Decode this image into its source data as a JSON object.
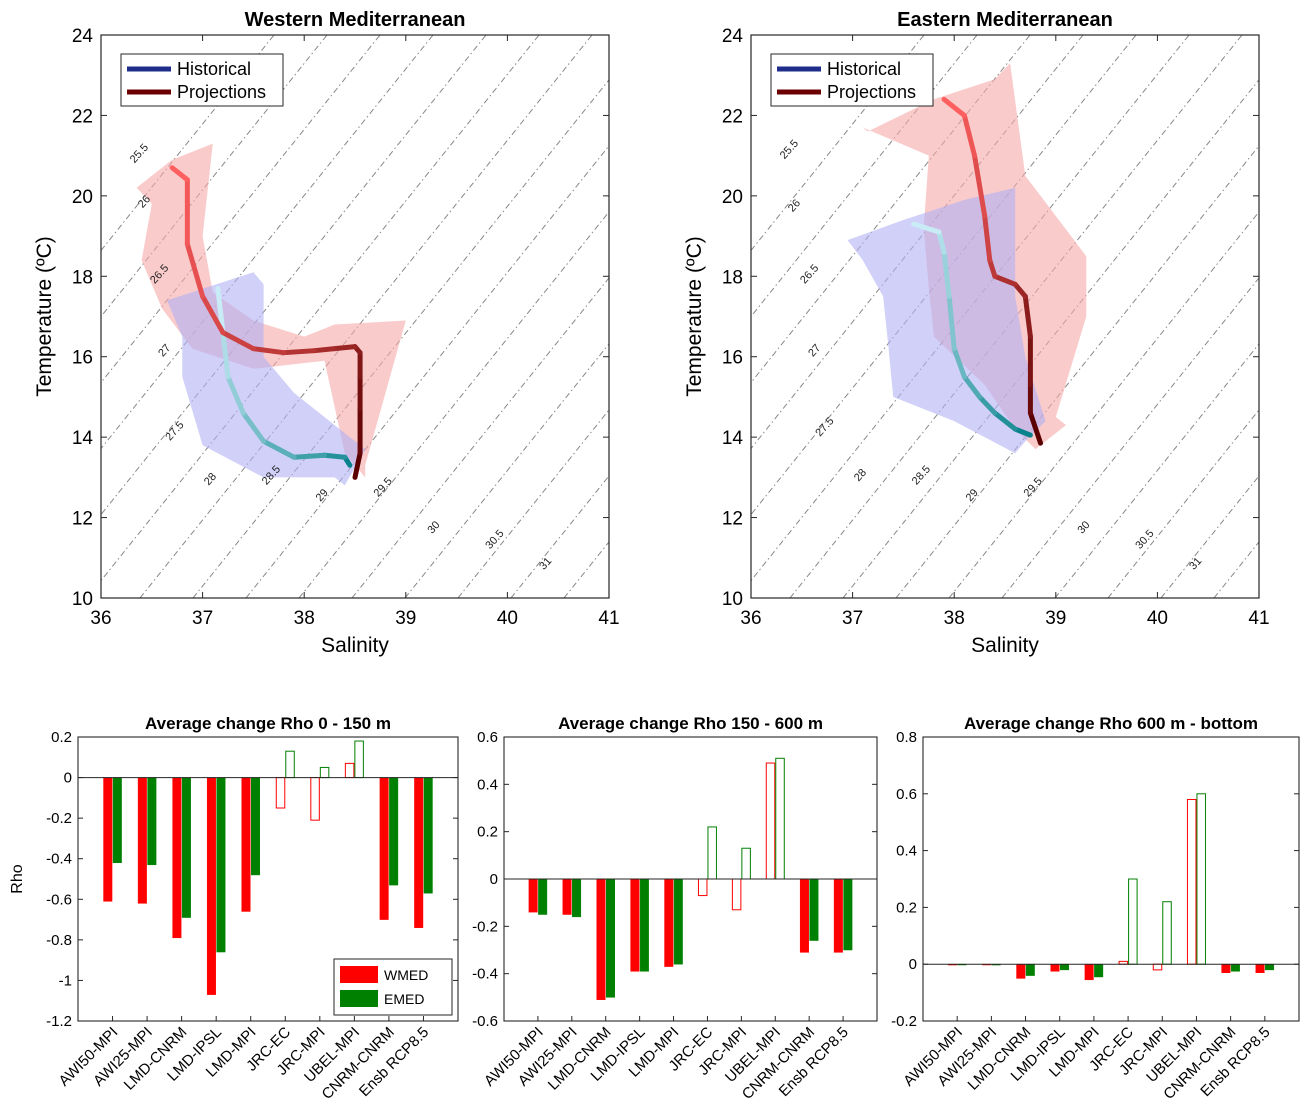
{
  "chart_data": [
    {
      "type": "ts-diagram",
      "title": "Western Mediterranean",
      "xlabel": "Salinity",
      "ylabel": "Temperature (ºC)",
      "xlim": [
        36,
        41
      ],
      "ylim": [
        10,
        24
      ],
      "xticks": [
        "36",
        "37",
        "38",
        "39",
        "40",
        "41"
      ],
      "yticks": [
        "10",
        "12",
        "14",
        "16",
        "18",
        "20",
        "22",
        "24"
      ],
      "isopycnals": [
        {
          "label": "25.5",
          "at": [
            36.4,
            21.0
          ]
        },
        {
          "label": "26",
          "at": [
            36.45,
            19.8
          ]
        },
        {
          "label": "26.5",
          "at": [
            36.6,
            18.0
          ]
        },
        {
          "label": "27",
          "at": [
            36.65,
            16.1
          ]
        },
        {
          "label": "27.5",
          "at": [
            36.75,
            14.1
          ]
        },
        {
          "label": "28",
          "at": [
            37.1,
            12.9
          ]
        },
        {
          "label": "28.5",
          "at": [
            37.7,
            13.0
          ]
        },
        {
          "label": "29",
          "at": [
            38.2,
            12.5
          ]
        },
        {
          "label": "29.5",
          "at": [
            38.8,
            12.7
          ]
        },
        {
          "label": "30",
          "at": [
            39.3,
            11.7
          ]
        },
        {
          "label": "30.5",
          "at": [
            39.9,
            11.4
          ]
        },
        {
          "label": "31",
          "at": [
            40.4,
            10.8
          ]
        }
      ],
      "legend": [
        "Historical",
        "Projections"
      ],
      "legend_position": "top-left",
      "colors": {
        "historical": "#1f2d8a",
        "projections": "#6b0000",
        "hist_band": "#b0b0f5",
        "proj_band": "#f7a8a8"
      },
      "series": [
        {
          "name": "Historical",
          "x": [
            38.45,
            38.4,
            38.2,
            37.9,
            37.6,
            37.4,
            37.25,
            37.2,
            37.15
          ],
          "y": [
            13.3,
            13.5,
            13.55,
            13.5,
            13.9,
            14.6,
            15.5,
            16.6,
            17.7
          ],
          "band_upper": [
            [
              38.6,
              13.7
            ],
            [
              38.3,
              14.3
            ],
            [
              37.9,
              15.1
            ],
            [
              37.6,
              16.0
            ],
            [
              37.6,
              17.8
            ],
            [
              37.5,
              18.1
            ],
            [
              36.65,
              17.4
            ]
          ],
          "band_lower": [
            [
              36.8,
              16.5
            ],
            [
              36.8,
              15.5
            ],
            [
              37.0,
              13.8
            ],
            [
              37.6,
              13.0
            ],
            [
              38.3,
              13.0
            ],
            [
              38.4,
              12.8
            ]
          ]
        },
        {
          "name": "Projections",
          "x": [
            38.5,
            38.55,
            38.55,
            38.55,
            38.55,
            38.5,
            38.3,
            38.1,
            37.8,
            37.5,
            37.2,
            37.0,
            36.85,
            36.85,
            36.7
          ],
          "y": [
            13.0,
            13.6,
            14.7,
            15.5,
            16.1,
            16.25,
            16.2,
            16.15,
            16.1,
            16.2,
            16.6,
            17.5,
            18.8,
            20.4,
            20.7
          ],
          "band_upper": [
            [
              36.35,
              20.2
            ],
            [
              36.7,
              20.9
            ],
            [
              37.1,
              21.3
            ],
            [
              37.0,
              19.0
            ],
            [
              37.1,
              17.6
            ],
            [
              37.5,
              16.9
            ],
            [
              38.0,
              16.5
            ],
            [
              38.3,
              16.8
            ],
            [
              39.0,
              16.9
            ],
            [
              38.6,
              13.3
            ],
            [
              38.6,
              13.0
            ]
          ],
          "band_lower": [
            [
              38.4,
              13.6
            ],
            [
              38.2,
              15.9
            ],
            [
              37.5,
              15.7
            ],
            [
              36.9,
              16.2
            ],
            [
              36.6,
              17.2
            ],
            [
              36.4,
              18.4
            ],
            [
              36.5,
              19.8
            ]
          ]
        }
      ]
    },
    {
      "type": "ts-diagram",
      "title": "Eastern Mediterranean",
      "xlabel": "Salinity",
      "ylabel": "Temperature (ºC)",
      "xlim": [
        36,
        41
      ],
      "ylim": [
        10,
        24
      ],
      "xticks": [
        "36",
        "37",
        "38",
        "39",
        "40",
        "41"
      ],
      "yticks": [
        "10",
        "12",
        "14",
        "16",
        "18",
        "20",
        "22",
        "24"
      ],
      "isopycnals": [
        {
          "label": "25.5",
          "at": [
            36.4,
            21.1
          ]
        },
        {
          "label": "26",
          "at": [
            36.45,
            19.7
          ]
        },
        {
          "label": "26.5",
          "at": [
            36.6,
            18.0
          ]
        },
        {
          "label": "27",
          "at": [
            36.65,
            16.1
          ]
        },
        {
          "label": "27.5",
          "at": [
            36.75,
            14.2
          ]
        },
        {
          "label": "28",
          "at": [
            37.1,
            13.0
          ]
        },
        {
          "label": "28.5",
          "at": [
            37.7,
            13.0
          ]
        },
        {
          "label": "29",
          "at": [
            38.2,
            12.5
          ]
        },
        {
          "label": "29.5",
          "at": [
            38.8,
            12.7
          ]
        },
        {
          "label": "30",
          "at": [
            39.3,
            11.7
          ]
        },
        {
          "label": "30.5",
          "at": [
            39.9,
            11.4
          ]
        },
        {
          "label": "31",
          "at": [
            40.4,
            10.8
          ]
        }
      ],
      "legend": [
        "Historical",
        "Projections"
      ],
      "legend_position": "top-left",
      "colors": {
        "historical": "#1f2d8a",
        "projections": "#6b0000",
        "hist_band": "#b0b0f5",
        "proj_band": "#f7a8a8"
      },
      "series": [
        {
          "name": "Historical",
          "x": [
            38.75,
            38.6,
            38.4,
            38.25,
            38.1,
            38.0,
            37.95,
            37.9,
            37.85,
            37.6
          ],
          "y": [
            14.05,
            14.2,
            14.6,
            15.0,
            15.5,
            16.2,
            17.5,
            18.6,
            19.1,
            19.3
          ],
          "band_upper": [
            [
              36.95,
              18.9
            ],
            [
              37.5,
              19.4
            ],
            [
              38.1,
              19.9
            ],
            [
              38.6,
              20.2
            ],
            [
              38.6,
              17.5
            ],
            [
              38.7,
              16.0
            ],
            [
              38.9,
              14.4
            ],
            [
              38.7,
              13.9
            ]
          ],
          "band_lower": [
            [
              38.6,
              13.6
            ],
            [
              38.0,
              14.4
            ],
            [
              37.4,
              15.0
            ],
            [
              37.35,
              16.3
            ],
            [
              37.3,
              17.5
            ],
            [
              37.1,
              18.4
            ]
          ]
        },
        {
          "name": "Projections",
          "x": [
            38.85,
            38.75,
            38.75,
            38.75,
            38.7,
            38.6,
            38.4,
            38.35,
            38.3,
            38.2,
            38.1,
            37.9
          ],
          "y": [
            13.85,
            14.6,
            15.3,
            16.5,
            17.5,
            17.8,
            18.0,
            18.4,
            19.5,
            21.0,
            22.0,
            22.4
          ],
          "band_upper": [
            [
              37.15,
              21.6
            ],
            [
              37.8,
              22.4
            ],
            [
              38.4,
              22.9
            ],
            [
              38.55,
              23.3
            ],
            [
              38.7,
              20.5
            ],
            [
              39.3,
              18.5
            ],
            [
              39.3,
              17.0
            ],
            [
              39.0,
              14.5
            ],
            [
              39.1,
              14.3
            ]
          ],
          "band_lower": [
            [
              38.8,
              13.7
            ],
            [
              38.6,
              14.2
            ],
            [
              38.3,
              15.3
            ],
            [
              37.8,
              16.5
            ],
            [
              37.75,
              17.7
            ],
            [
              37.7,
              19.2
            ],
            [
              37.75,
              21.0
            ],
            [
              37.1,
              21.7
            ]
          ]
        }
      ]
    },
    {
      "type": "bar",
      "title": "Average change Rho 0 - 150 m",
      "ylabel": "Rho",
      "ylim": [
        -1.2,
        0.2
      ],
      "yticks": [
        "-1.2",
        "-1",
        "-0.8",
        "-0.6",
        "-0.4",
        "-0.2",
        "0",
        "0.2"
      ],
      "categories": [
        "AWI50-MPI",
        "AWI25-MPI",
        "LMD-CNRM",
        "LMD-IPSL",
        "LMD-MPI",
        "JRC-EC",
        "JRC-MPI",
        "UBEL-MPI",
        "CNRM-CNRM",
        "Ensb RCP8.5"
      ],
      "legend": [
        "WMED",
        "EMED"
      ],
      "legend_position": "bottom-right",
      "colors": {
        "wmed": "#ff0000",
        "emed": "#008000"
      },
      "series": [
        {
          "name": "WMED",
          "values": [
            -0.61,
            -0.62,
            -0.79,
            -1.07,
            -0.66,
            -0.15,
            -0.21,
            0.07,
            -0.7,
            -0.74
          ],
          "filled": [
            true,
            true,
            true,
            true,
            true,
            false,
            false,
            false,
            true,
            true
          ]
        },
        {
          "name": "EMED",
          "values": [
            -0.42,
            -0.43,
            -0.69,
            -0.86,
            -0.48,
            0.13,
            0.05,
            0.18,
            -0.53,
            -0.57
          ],
          "filled": [
            true,
            true,
            true,
            true,
            true,
            false,
            false,
            false,
            true,
            true
          ]
        }
      ]
    },
    {
      "type": "bar",
      "title": "Average change Rho 150 - 600 m",
      "ylabel": "",
      "ylim": [
        -0.6,
        0.6
      ],
      "yticks": [
        "-0.6",
        "-0.4",
        "-0.2",
        "0",
        "0.2",
        "0.4",
        "0.6"
      ],
      "categories": [
        "AWI50-MPI",
        "AWI25-MPI",
        "LMD-CNRM",
        "LMD-IPSL",
        "LMD-MPI",
        "JRC-EC",
        "JRC-MPI",
        "UBEL-MPI",
        "CNRM-CNRM",
        "Ensb RCP8.5"
      ],
      "colors": {
        "wmed": "#ff0000",
        "emed": "#008000"
      },
      "series": [
        {
          "name": "WMED",
          "values": [
            -0.14,
            -0.15,
            -0.51,
            -0.39,
            -0.37,
            -0.07,
            -0.13,
            0.49,
            -0.31,
            -0.31
          ],
          "filled": [
            true,
            true,
            true,
            true,
            true,
            false,
            false,
            false,
            true,
            true
          ]
        },
        {
          "name": "EMED",
          "values": [
            -0.15,
            -0.16,
            -0.5,
            -0.39,
            -0.36,
            0.22,
            0.13,
            0.51,
            -0.26,
            -0.3
          ],
          "filled": [
            true,
            true,
            true,
            true,
            true,
            false,
            false,
            false,
            true,
            true
          ]
        }
      ]
    },
    {
      "type": "bar",
      "title": "Average change Rho 600 m - bottom",
      "ylabel": "",
      "ylim": [
        -0.2,
        0.8
      ],
      "yticks": [
        "-0.2",
        "0",
        "0.2",
        "0.4",
        "0.6",
        "0.8"
      ],
      "categories": [
        "AWI50-MPI",
        "AWI25-MPI",
        "LMD-CNRM",
        "LMD-IPSL",
        "LMD-MPI",
        "JRC-EC",
        "JRC-MPI",
        "UBEL-MPI",
        "CNRM-CNRM",
        "Ensb RCP8.5"
      ],
      "colors": {
        "wmed": "#ff0000",
        "emed": "#008000"
      },
      "series": [
        {
          "name": "WMED",
          "values": [
            -0.003,
            0.0,
            -0.05,
            -0.025,
            -0.055,
            0.01,
            -0.02,
            0.58,
            -0.03,
            -0.03
          ],
          "filled": [
            true,
            true,
            true,
            true,
            true,
            false,
            false,
            false,
            true,
            true
          ]
        },
        {
          "name": "EMED",
          "values": [
            0.0,
            -0.003,
            -0.04,
            -0.02,
            -0.045,
            0.3,
            0.22,
            0.6,
            -0.025,
            -0.02
          ],
          "filled": [
            true,
            true,
            true,
            true,
            true,
            false,
            false,
            false,
            true,
            true
          ]
        }
      ]
    }
  ]
}
